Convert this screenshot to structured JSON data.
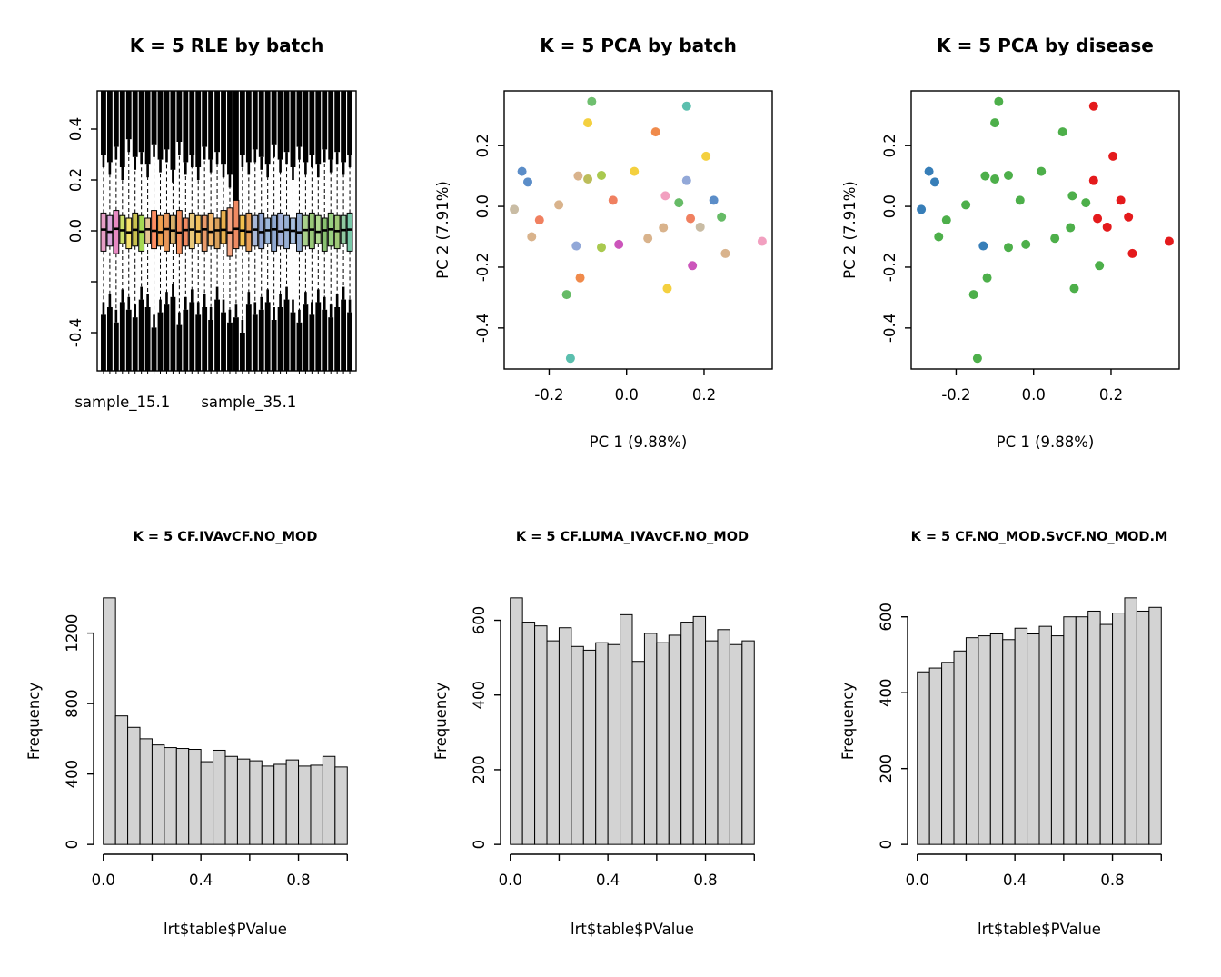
{
  "figure": {
    "background": "#ffffff"
  },
  "colors": {
    "axis": "#000000",
    "text": "#000000",
    "bar_fill": "#d3d3d3",
    "disease": {
      "green": "#4DAF4A",
      "red": "#E41A1C",
      "blue": "#377EB8"
    }
  },
  "pca_points": [
    {
      "x": -0.09,
      "y": 0.345,
      "batch": "#6FBF6F",
      "disease": "green"
    },
    {
      "x": -0.1,
      "y": 0.275,
      "batch": "#F4D03F",
      "disease": "green"
    },
    {
      "x": 0.155,
      "y": 0.33,
      "batch": "#5BBFAE",
      "disease": "red"
    },
    {
      "x": 0.075,
      "y": 0.245,
      "batch": "#F08A4B",
      "disease": "green"
    },
    {
      "x": 0.205,
      "y": 0.165,
      "batch": "#F4D03F",
      "disease": "red"
    },
    {
      "x": -0.27,
      "y": 0.115,
      "batch": "#5B8DC8",
      "disease": "blue"
    },
    {
      "x": -0.255,
      "y": 0.08,
      "batch": "#5B8DC8",
      "disease": "blue"
    },
    {
      "x": -0.125,
      "y": 0.1,
      "batch": "#D9B38C",
      "disease": "green"
    },
    {
      "x": -0.1,
      "y": 0.09,
      "batch": "#BCBD5A",
      "disease": "green"
    },
    {
      "x": -0.065,
      "y": 0.102,
      "batch": "#A9C94F",
      "disease": "green"
    },
    {
      "x": 0.155,
      "y": 0.085,
      "batch": "#92A8D8",
      "disease": "red"
    },
    {
      "x": -0.035,
      "y": 0.02,
      "batch": "#F08060",
      "disease": "green"
    },
    {
      "x": -0.175,
      "y": 0.005,
      "batch": "#D9B38C",
      "disease": "green"
    },
    {
      "x": -0.29,
      "y": -0.01,
      "batch": "#C9BCA4",
      "disease": "blue"
    },
    {
      "x": -0.225,
      "y": -0.045,
      "batch": "#F08060",
      "disease": "green"
    },
    {
      "x": 0.1,
      "y": 0.035,
      "batch": "#F2A0C0",
      "disease": "green"
    },
    {
      "x": 0.135,
      "y": 0.012,
      "batch": "#66BB66",
      "disease": "green"
    },
    {
      "x": 0.225,
      "y": 0.02,
      "batch": "#5B8DC8",
      "disease": "red"
    },
    {
      "x": 0.245,
      "y": -0.035,
      "batch": "#66BB66",
      "disease": "red"
    },
    {
      "x": 0.165,
      "y": -0.04,
      "batch": "#F08060",
      "disease": "red"
    },
    {
      "x": 0.19,
      "y": -0.068,
      "batch": "#C9BCA4",
      "disease": "red"
    },
    {
      "x": 0.095,
      "y": -0.07,
      "batch": "#D9B38C",
      "disease": "green"
    },
    {
      "x": -0.065,
      "y": -0.135,
      "batch": "#A9C94F",
      "disease": "green"
    },
    {
      "x": -0.02,
      "y": -0.125,
      "batch": "#CC55BB",
      "disease": "green"
    },
    {
      "x": 0.055,
      "y": -0.105,
      "batch": "#D9B38C",
      "disease": "green"
    },
    {
      "x": 0.35,
      "y": -0.115,
      "batch": "#F2A0C0",
      "disease": "red"
    },
    {
      "x": 0.255,
      "y": -0.155,
      "batch": "#D9B38C",
      "disease": "red"
    },
    {
      "x": 0.17,
      "y": -0.195,
      "batch": "#CC55BB",
      "disease": "green"
    },
    {
      "x": -0.12,
      "y": -0.235,
      "batch": "#F08A4B",
      "disease": "green"
    },
    {
      "x": 0.105,
      "y": -0.27,
      "batch": "#F4D03F",
      "disease": "green"
    },
    {
      "x": -0.145,
      "y": -0.5,
      "batch": "#5BBFAE",
      "disease": "green"
    },
    {
      "x": -0.13,
      "y": -0.13,
      "batch": "#92A8D8",
      "disease": "blue"
    },
    {
      "x": -0.245,
      "y": -0.1,
      "batch": "#D9B38C",
      "disease": "green"
    },
    {
      "x": -0.155,
      "y": -0.29,
      "batch": "#66BB66",
      "disease": "green"
    },
    {
      "x": 0.02,
      "y": 0.115,
      "batch": "#F4D03F",
      "disease": "green"
    }
  ],
  "chart_data": [
    {
      "id": "rle-by-batch",
      "type": "boxplot",
      "title": "K = 5 RLE by batch",
      "ylim": [
        -0.5,
        0.5
      ],
      "yticks": [
        {
          "v": -0.4,
          "label": "-0.4"
        },
        {
          "v": -0.2,
          "label": ""
        },
        {
          "v": 0,
          "label": "0.0"
        },
        {
          "v": 0.2,
          "label": "0.2"
        },
        {
          "v": 0.4,
          "label": "0.4"
        }
      ],
      "x_tick_labels": [
        {
          "text": "sample_15.1",
          "index": 4
        },
        {
          "text": "sample_35.1",
          "index": 24
        }
      ],
      "box_fields": [
        "color",
        "median",
        "q1",
        "q3",
        "whisker_lo",
        "whisker_hi",
        "outlier_top_extent",
        "outlier_bottom_extent"
      ],
      "boxes": [
        [
          "#E79EC6",
          0.005,
          -0.08,
          0.07,
          -0.44,
          0.45,
          0.3,
          -0.33
        ],
        [
          "#D9A7DB",
          -0.004,
          -0.06,
          0.06,
          -0.42,
          0.43,
          0.27,
          -0.3
        ],
        [
          "#E78AC3",
          0.008,
          -0.09,
          0.08,
          -0.45,
          0.46,
          0.33,
          -0.36
        ],
        [
          "#CDE06A",
          0.002,
          -0.05,
          0.06,
          -0.4,
          0.42,
          0.25,
          -0.28
        ],
        [
          "#F5E26B",
          -0.006,
          -0.07,
          0.05,
          -0.43,
          0.41,
          0.36,
          -0.31
        ],
        [
          "#C9C14F",
          0.004,
          -0.06,
          0.07,
          -0.41,
          0.44,
          0.29,
          -0.34
        ],
        [
          "#A6D854",
          -0.003,
          -0.08,
          0.06,
          -0.44,
          0.42,
          0.31,
          -0.27
        ],
        [
          "#E5C494",
          0.006,
          -0.05,
          0.05,
          -0.39,
          0.4,
          0.26,
          -0.3
        ],
        [
          "#FC8D62",
          0.0,
          -0.07,
          0.08,
          -0.45,
          0.46,
          0.34,
          -0.38
        ],
        [
          "#F0A04E",
          -0.005,
          -0.06,
          0.06,
          -0.42,
          0.43,
          0.28,
          -0.32
        ],
        [
          "#E8975A",
          0.007,
          -0.08,
          0.07,
          -0.44,
          0.44,
          0.32,
          -0.29
        ],
        [
          "#D8B06A",
          0.001,
          -0.05,
          0.06,
          -0.4,
          0.41,
          0.24,
          -0.26
        ],
        [
          "#F28E5C",
          -0.007,
          -0.09,
          0.08,
          -0.46,
          0.45,
          0.35,
          -0.37
        ],
        [
          "#EF8A62",
          0.003,
          -0.06,
          0.05,
          -0.41,
          0.42,
          0.27,
          -0.31
        ],
        [
          "#E8C87A",
          0.005,
          -0.07,
          0.07,
          -0.43,
          0.43,
          0.3,
          -0.28
        ],
        [
          "#F0C05A",
          -0.002,
          -0.05,
          0.06,
          -0.4,
          0.44,
          0.25,
          -0.33
        ],
        [
          "#E89A6A",
          0.006,
          -0.08,
          0.06,
          -0.44,
          0.42,
          0.33,
          -0.3
        ],
        [
          "#F2B56A",
          -0.004,
          -0.06,
          0.07,
          -0.42,
          0.45,
          0.28,
          -0.35
        ],
        [
          "#D9A05A",
          0.002,
          -0.07,
          0.05,
          -0.43,
          0.41,
          0.31,
          -0.27
        ],
        [
          "#E8B04E",
          0.004,
          -0.05,
          0.08,
          -0.39,
          0.46,
          0.26,
          -0.32
        ],
        [
          "#F4A582",
          -0.006,
          -0.1,
          0.09,
          -0.46,
          0.47,
          0.22,
          -0.36
        ],
        [
          "#EF8A62",
          0.008,
          -0.07,
          0.12,
          -0.43,
          0.48,
          0.1,
          -0.34
        ],
        [
          "#F2C14E",
          0.001,
          -0.06,
          0.06,
          -0.41,
          0.43,
          0.3,
          -0.4
        ],
        [
          "#E8A05A",
          -0.003,
          -0.08,
          0.07,
          -0.44,
          0.44,
          0.27,
          -0.29
        ],
        [
          "#A8B8D8",
          0.005,
          -0.06,
          0.06,
          -0.42,
          0.42,
          0.32,
          -0.33
        ],
        [
          "#93A8D4",
          -0.005,
          -0.07,
          0.07,
          -0.43,
          0.44,
          0.29,
          -0.31
        ],
        [
          "#9DB8DC",
          0.002,
          -0.05,
          0.05,
          -0.4,
          0.41,
          0.26,
          -0.28
        ],
        [
          "#8FA8D0",
          0.006,
          -0.08,
          0.06,
          -0.44,
          0.43,
          0.34,
          -0.35
        ],
        [
          "#A0B0D8",
          -0.002,
          -0.06,
          0.07,
          -0.41,
          0.44,
          0.28,
          -0.3
        ],
        [
          "#98B0D4",
          0.004,
          -0.07,
          0.06,
          -0.43,
          0.42,
          0.31,
          -0.27
        ],
        [
          "#A8C0E0",
          0.0,
          -0.05,
          0.05,
          -0.4,
          0.41,
          0.25,
          -0.32
        ],
        [
          "#90A8CC",
          -0.006,
          -0.08,
          0.07,
          -0.45,
          0.45,
          0.33,
          -0.36
        ],
        [
          "#A8D08A",
          0.003,
          -0.06,
          0.06,
          -0.42,
          0.43,
          0.27,
          -0.29
        ],
        [
          "#98C878",
          0.005,
          -0.07,
          0.07,
          -0.43,
          0.44,
          0.3,
          -0.33
        ],
        [
          "#B0D890",
          -0.004,
          -0.05,
          0.06,
          -0.4,
          0.42,
          0.26,
          -0.28
        ],
        [
          "#88C070",
          0.002,
          -0.08,
          0.05,
          -0.44,
          0.41,
          0.32,
          -0.31
        ],
        [
          "#98D080",
          0.006,
          -0.06,
          0.07,
          -0.42,
          0.44,
          0.28,
          -0.34
        ],
        [
          "#A0C878",
          -0.001,
          -0.07,
          0.06,
          -0.43,
          0.42,
          0.31,
          -0.3
        ],
        [
          "#90C8A0",
          0.003,
          -0.05,
          0.06,
          -0.41,
          0.43,
          0.27,
          -0.27
        ],
        [
          "#78C8A8",
          0.005,
          -0.08,
          0.07,
          -0.44,
          0.45,
          0.3,
          -0.32
        ]
      ]
    },
    {
      "id": "pca-by-batch",
      "type": "scatter",
      "title": "K = 5 PCA by batch",
      "xlabel": "PC 1 (9.88%)",
      "ylabel": "PC 2 (7.91%)",
      "xlim": [
        -0.316,
        0.376
      ],
      "ylim": [
        -0.535,
        0.38
      ],
      "xticks": [
        {
          "v": -0.2,
          "label": "-0.2"
        },
        {
          "v": 0,
          "label": "0.0"
        },
        {
          "v": 0.2,
          "label": "0.2"
        }
      ],
      "yticks": [
        {
          "v": -0.4,
          "label": "-0.4"
        },
        {
          "v": -0.2,
          "label": "-0.2"
        },
        {
          "v": 0,
          "label": "0.0"
        },
        {
          "v": 0.2,
          "label": "0.2"
        }
      ],
      "points_key": "pca_points",
      "color_key": "batch"
    },
    {
      "id": "pca-by-disease",
      "type": "scatter",
      "title": "K = 5 PCA by disease",
      "xlabel": "PC 1 (9.88%)",
      "ylabel": "PC 2 (7.91%)",
      "xlim": [
        -0.316,
        0.376
      ],
      "ylim": [
        -0.535,
        0.38
      ],
      "xticks": [
        {
          "v": -0.2,
          "label": "-0.2"
        },
        {
          "v": 0,
          "label": "0.0"
        },
        {
          "v": 0.2,
          "label": "0.2"
        }
      ],
      "yticks": [
        {
          "v": -0.4,
          "label": "-0.4"
        },
        {
          "v": -0.2,
          "label": "-0.2"
        },
        {
          "v": 0,
          "label": "0.0"
        },
        {
          "v": 0.2,
          "label": "0.2"
        }
      ],
      "points_key": "pca_points",
      "color_key": "disease"
    },
    {
      "id": "hist-cf-iva-vs-no-mod",
      "type": "histogram",
      "title": "K = 5 CF.IVAvCF.NO_MOD",
      "xlabel": "lrt$table$PValue",
      "ylabel": "Frequency",
      "bin_start": 0,
      "bin_width": 0.05,
      "counts": [
        1400,
        730,
        665,
        600,
        565,
        550,
        545,
        540,
        470,
        535,
        500,
        485,
        475,
        445,
        455,
        480,
        445,
        450,
        500,
        440
      ],
      "ylim_max": 1400,
      "yticks": [
        {
          "v": 0,
          "label": "0"
        },
        {
          "v": 400,
          "label": "400"
        },
        {
          "v": 800,
          "label": "800"
        },
        {
          "v": 1200,
          "label": "1200"
        }
      ],
      "xticks": [
        {
          "v": 0,
          "label": "0.0"
        },
        {
          "v": 0.2,
          "label": ""
        },
        {
          "v": 0.4,
          "label": "0.4"
        },
        {
          "v": 0.6,
          "label": ""
        },
        {
          "v": 0.8,
          "label": "0.8"
        },
        {
          "v": 1,
          "label": ""
        }
      ]
    },
    {
      "id": "hist-cf-luma-iva-vs-no-mod",
      "type": "histogram",
      "title": "K = 5 CF.LUMA_IVAvCF.NO_MOD",
      "xlabel": "lrt$table$PValue",
      "ylabel": "Frequency",
      "bin_start": 0,
      "bin_width": 0.05,
      "counts": [
        660,
        595,
        585,
        545,
        580,
        530,
        520,
        540,
        535,
        615,
        490,
        565,
        540,
        560,
        595,
        610,
        545,
        575,
        535,
        545
      ],
      "ylim_max": 660,
      "yticks": [
        {
          "v": 0,
          "label": "0"
        },
        {
          "v": 200,
          "label": "200"
        },
        {
          "v": 400,
          "label": "400"
        },
        {
          "v": 600,
          "label": "600"
        }
      ],
      "xticks": [
        {
          "v": 0,
          "label": "0.0"
        },
        {
          "v": 0.2,
          "label": ""
        },
        {
          "v": 0.4,
          "label": "0.4"
        },
        {
          "v": 0.6,
          "label": ""
        },
        {
          "v": 0.8,
          "label": "0.8"
        },
        {
          "v": 1,
          "label": ""
        }
      ]
    },
    {
      "id": "hist-cf-no-mod-s-vs-m",
      "type": "histogram",
      "title": "K = 5 CF.NO_MOD.SvCF.NO_MOD.M",
      "xlabel": "lrt$table$PValue",
      "ylabel": "Frequency",
      "bin_start": 0,
      "bin_width": 0.05,
      "counts": [
        455,
        465,
        480,
        510,
        545,
        550,
        555,
        540,
        570,
        555,
        575,
        550,
        600,
        600,
        615,
        580,
        610,
        650,
        615,
        625
      ],
      "ylim_max": 650,
      "yticks": [
        {
          "v": 0,
          "label": "0"
        },
        {
          "v": 200,
          "label": "200"
        },
        {
          "v": 400,
          "label": "400"
        },
        {
          "v": 600,
          "label": "600"
        }
      ],
      "xticks": [
        {
          "v": 0,
          "label": "0.0"
        },
        {
          "v": 0.2,
          "label": ""
        },
        {
          "v": 0.4,
          "label": "0.4"
        },
        {
          "v": 0.6,
          "label": ""
        },
        {
          "v": 0.8,
          "label": "0.8"
        },
        {
          "v": 1,
          "label": ""
        }
      ]
    }
  ]
}
